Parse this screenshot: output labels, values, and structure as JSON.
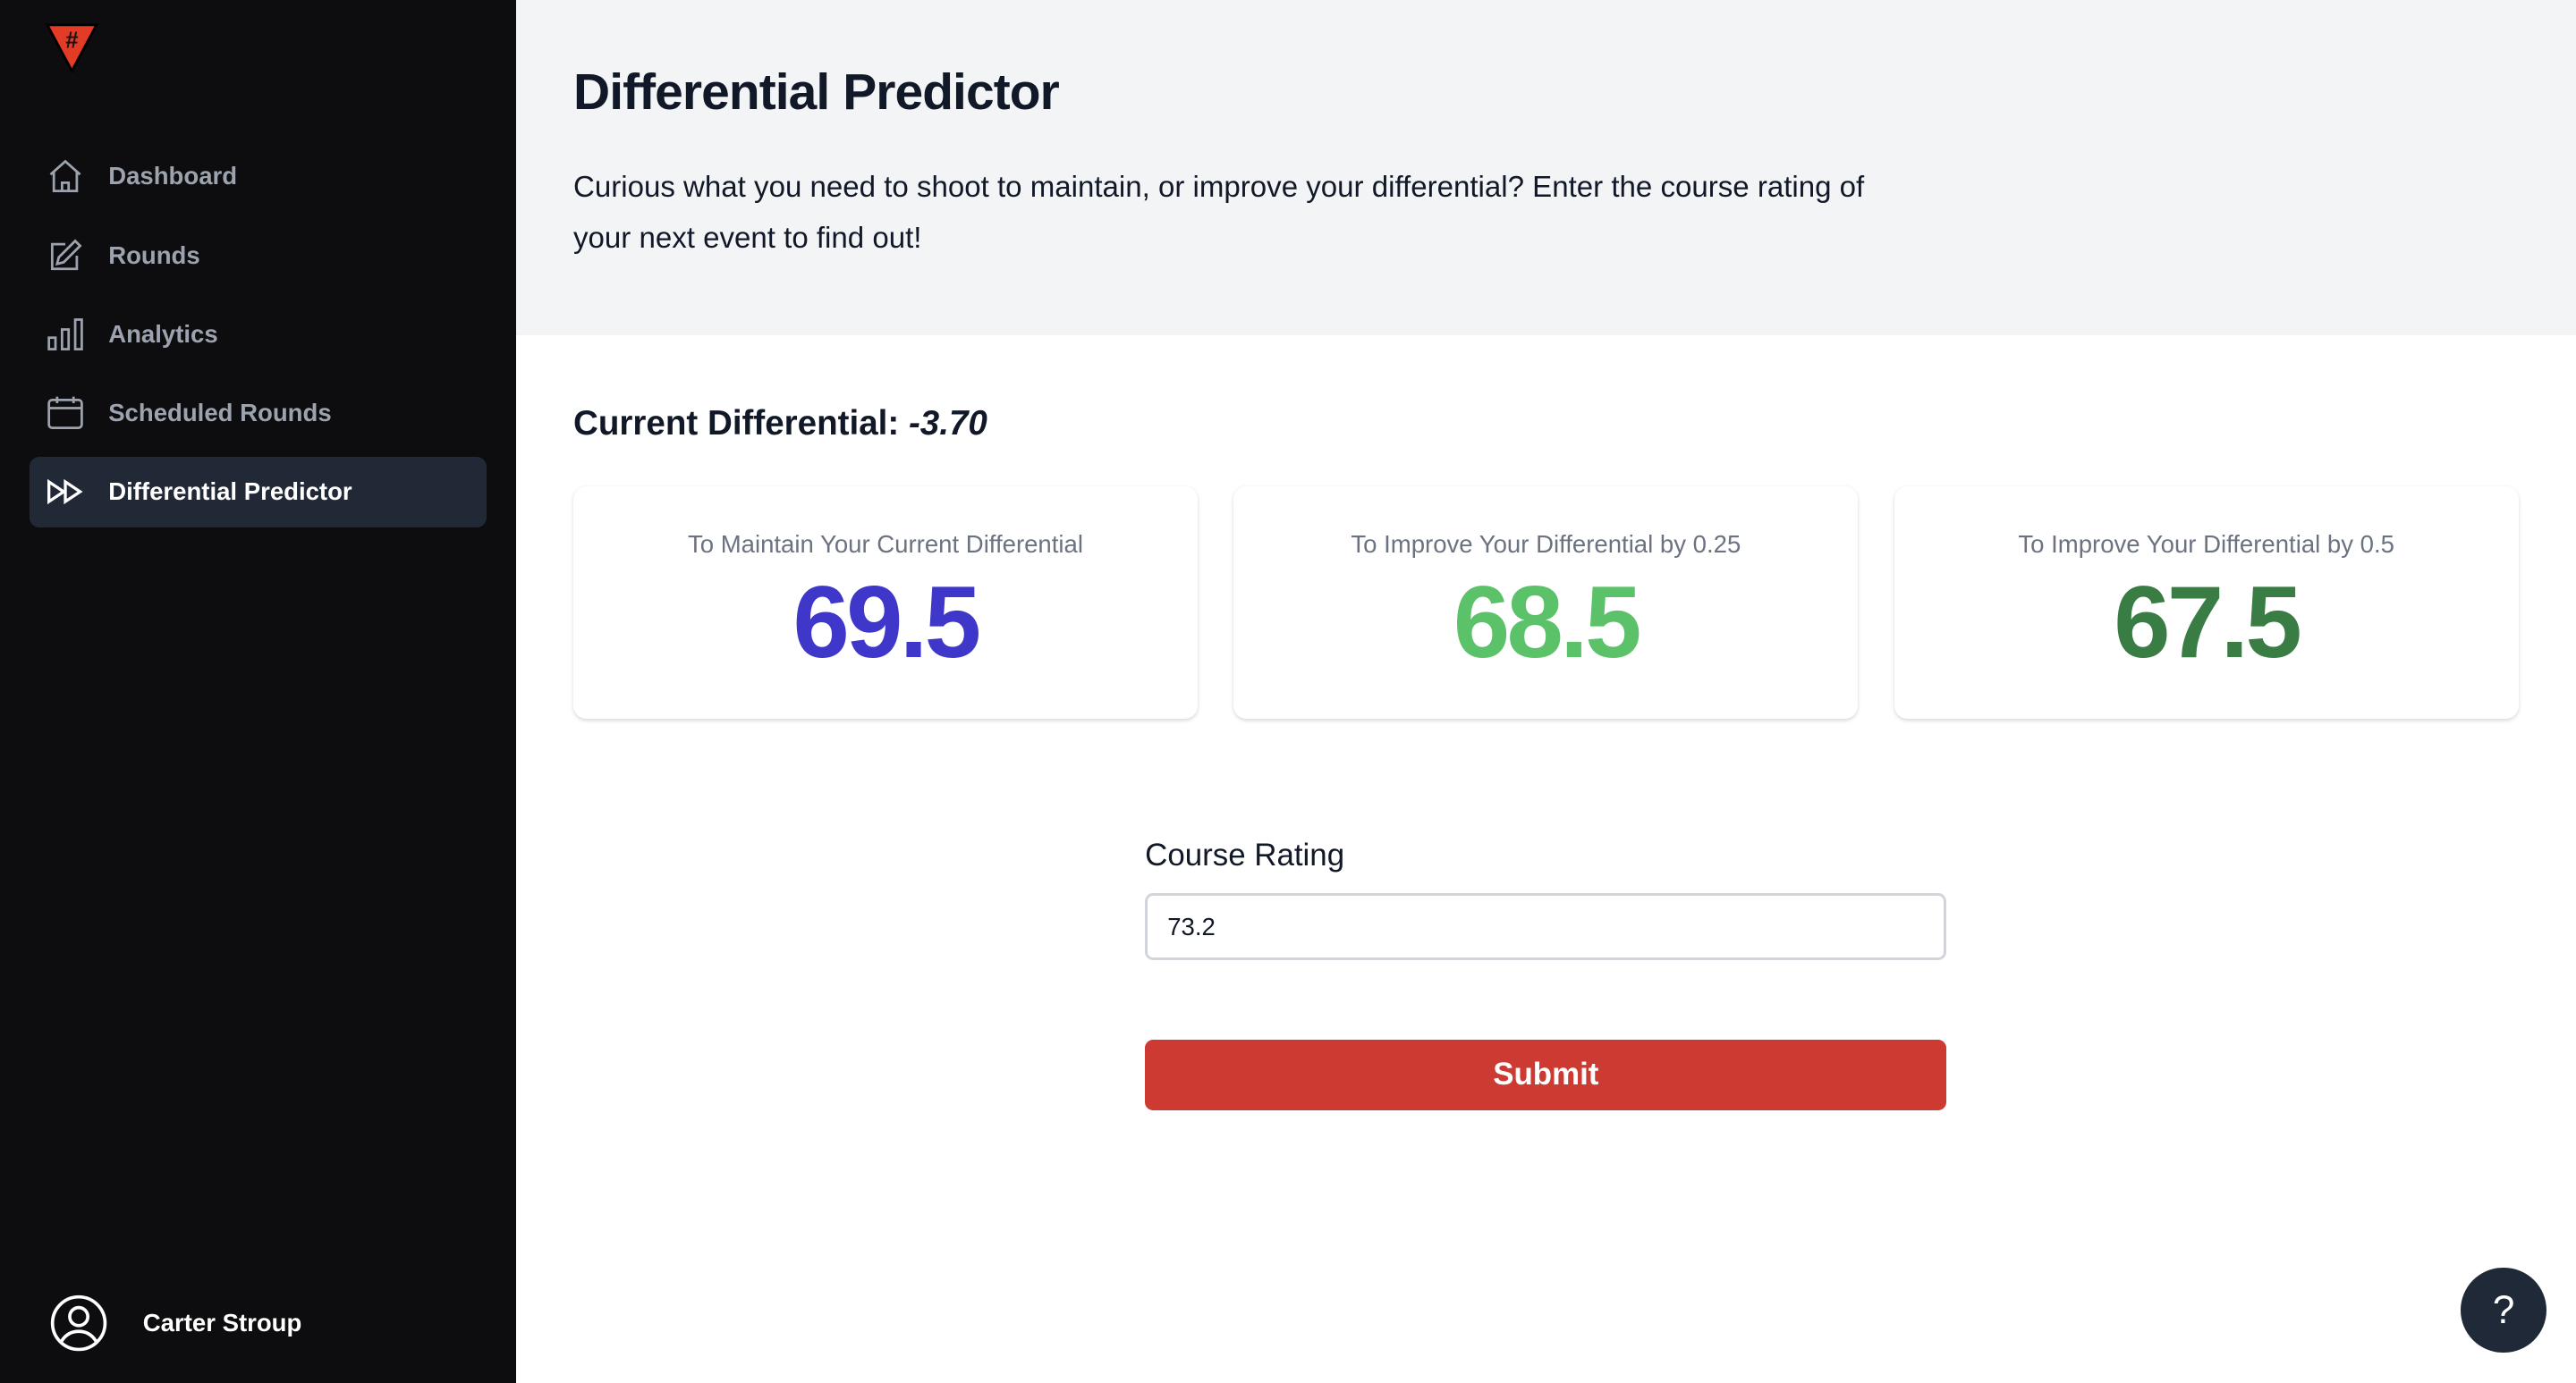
{
  "sidebar": {
    "logo": "#",
    "items": [
      {
        "label": "Dashboard",
        "icon": "home-icon"
      },
      {
        "label": "Rounds",
        "icon": "pencil-square-icon"
      },
      {
        "label": "Analytics",
        "icon": "bar-chart-icon"
      },
      {
        "label": "Scheduled Rounds",
        "icon": "calendar-icon"
      },
      {
        "label": "Differential Predictor",
        "icon": "forward-icon",
        "active": true
      }
    ],
    "user": {
      "name": "Carter Stroup",
      "icon": "user-circle-icon"
    }
  },
  "header": {
    "title": "Differential Predictor",
    "description": "Curious what you need to shoot to maintain, or improve your differential? Enter the course rating of your next event to find out!"
  },
  "current": {
    "label": "Current Differential:",
    "value": "-3.70"
  },
  "cards": [
    {
      "label": "To Maintain Your Current Differential",
      "value": "69.5",
      "color": "#3f37c9"
    },
    {
      "label": "To Improve Your Differential by 0.25",
      "value": "68.5",
      "color": "#5cc26a"
    },
    {
      "label": "To Improve Your Differential by 0.5",
      "value": "67.5",
      "color": "#3a7d44"
    }
  ],
  "form": {
    "label": "Course Rating",
    "value": "73.2",
    "submit": "Submit"
  },
  "help": {
    "label": "?"
  },
  "colors": {
    "accent": "#cc3a32",
    "sidebar": "#0d0d0f",
    "active": "#212836"
  }
}
